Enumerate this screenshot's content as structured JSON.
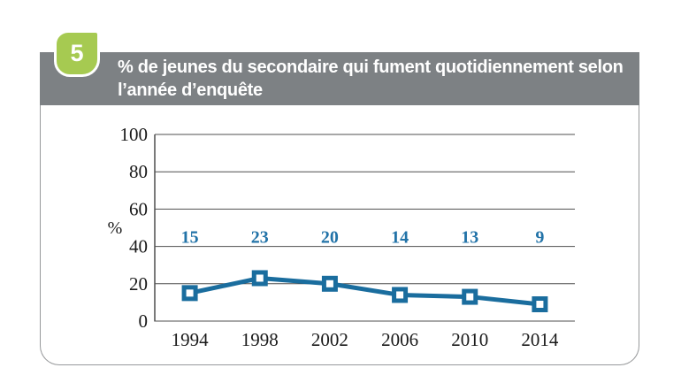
{
  "badge": {
    "number": "5"
  },
  "header": {
    "title_line1": "% de jeunes du secondaire qui fument quotidiennement selon",
    "title_line2": "l’année d’enquête"
  },
  "colors": {
    "header_bg": "#7d8184",
    "badge_green": "#a6ca51",
    "card_border": "#97999b",
    "line_blue": "#1a6d9e",
    "data_label_blue": "#2273a8",
    "grid_gray": "#4f4f4f",
    "tick_text": "#1a1a1a"
  },
  "chart_data": {
    "type": "line",
    "title": "% de jeunes du secondaire qui fument quotidiennement selon l’année d’enquête",
    "categories": [
      "1994",
      "1998",
      "2002",
      "2006",
      "2010",
      "2014"
    ],
    "values": [
      15,
      23,
      20,
      14,
      13,
      9
    ],
    "data_labels": [
      "15",
      "23",
      "20",
      "14",
      "13",
      "9"
    ],
    "ylabel": "%",
    "xlabel": "",
    "yticks": [
      0,
      20,
      40,
      60,
      80,
      100
    ],
    "ylim": [
      0,
      100
    ],
    "grid": true,
    "legend": "none",
    "marker": "square",
    "data_label_baseline_value": 40,
    "line_color": "#1a6d9e",
    "label_color": "#2273a8",
    "grid_color": "#4f4f4f",
    "tick_color": "#1a1a1a"
  }
}
